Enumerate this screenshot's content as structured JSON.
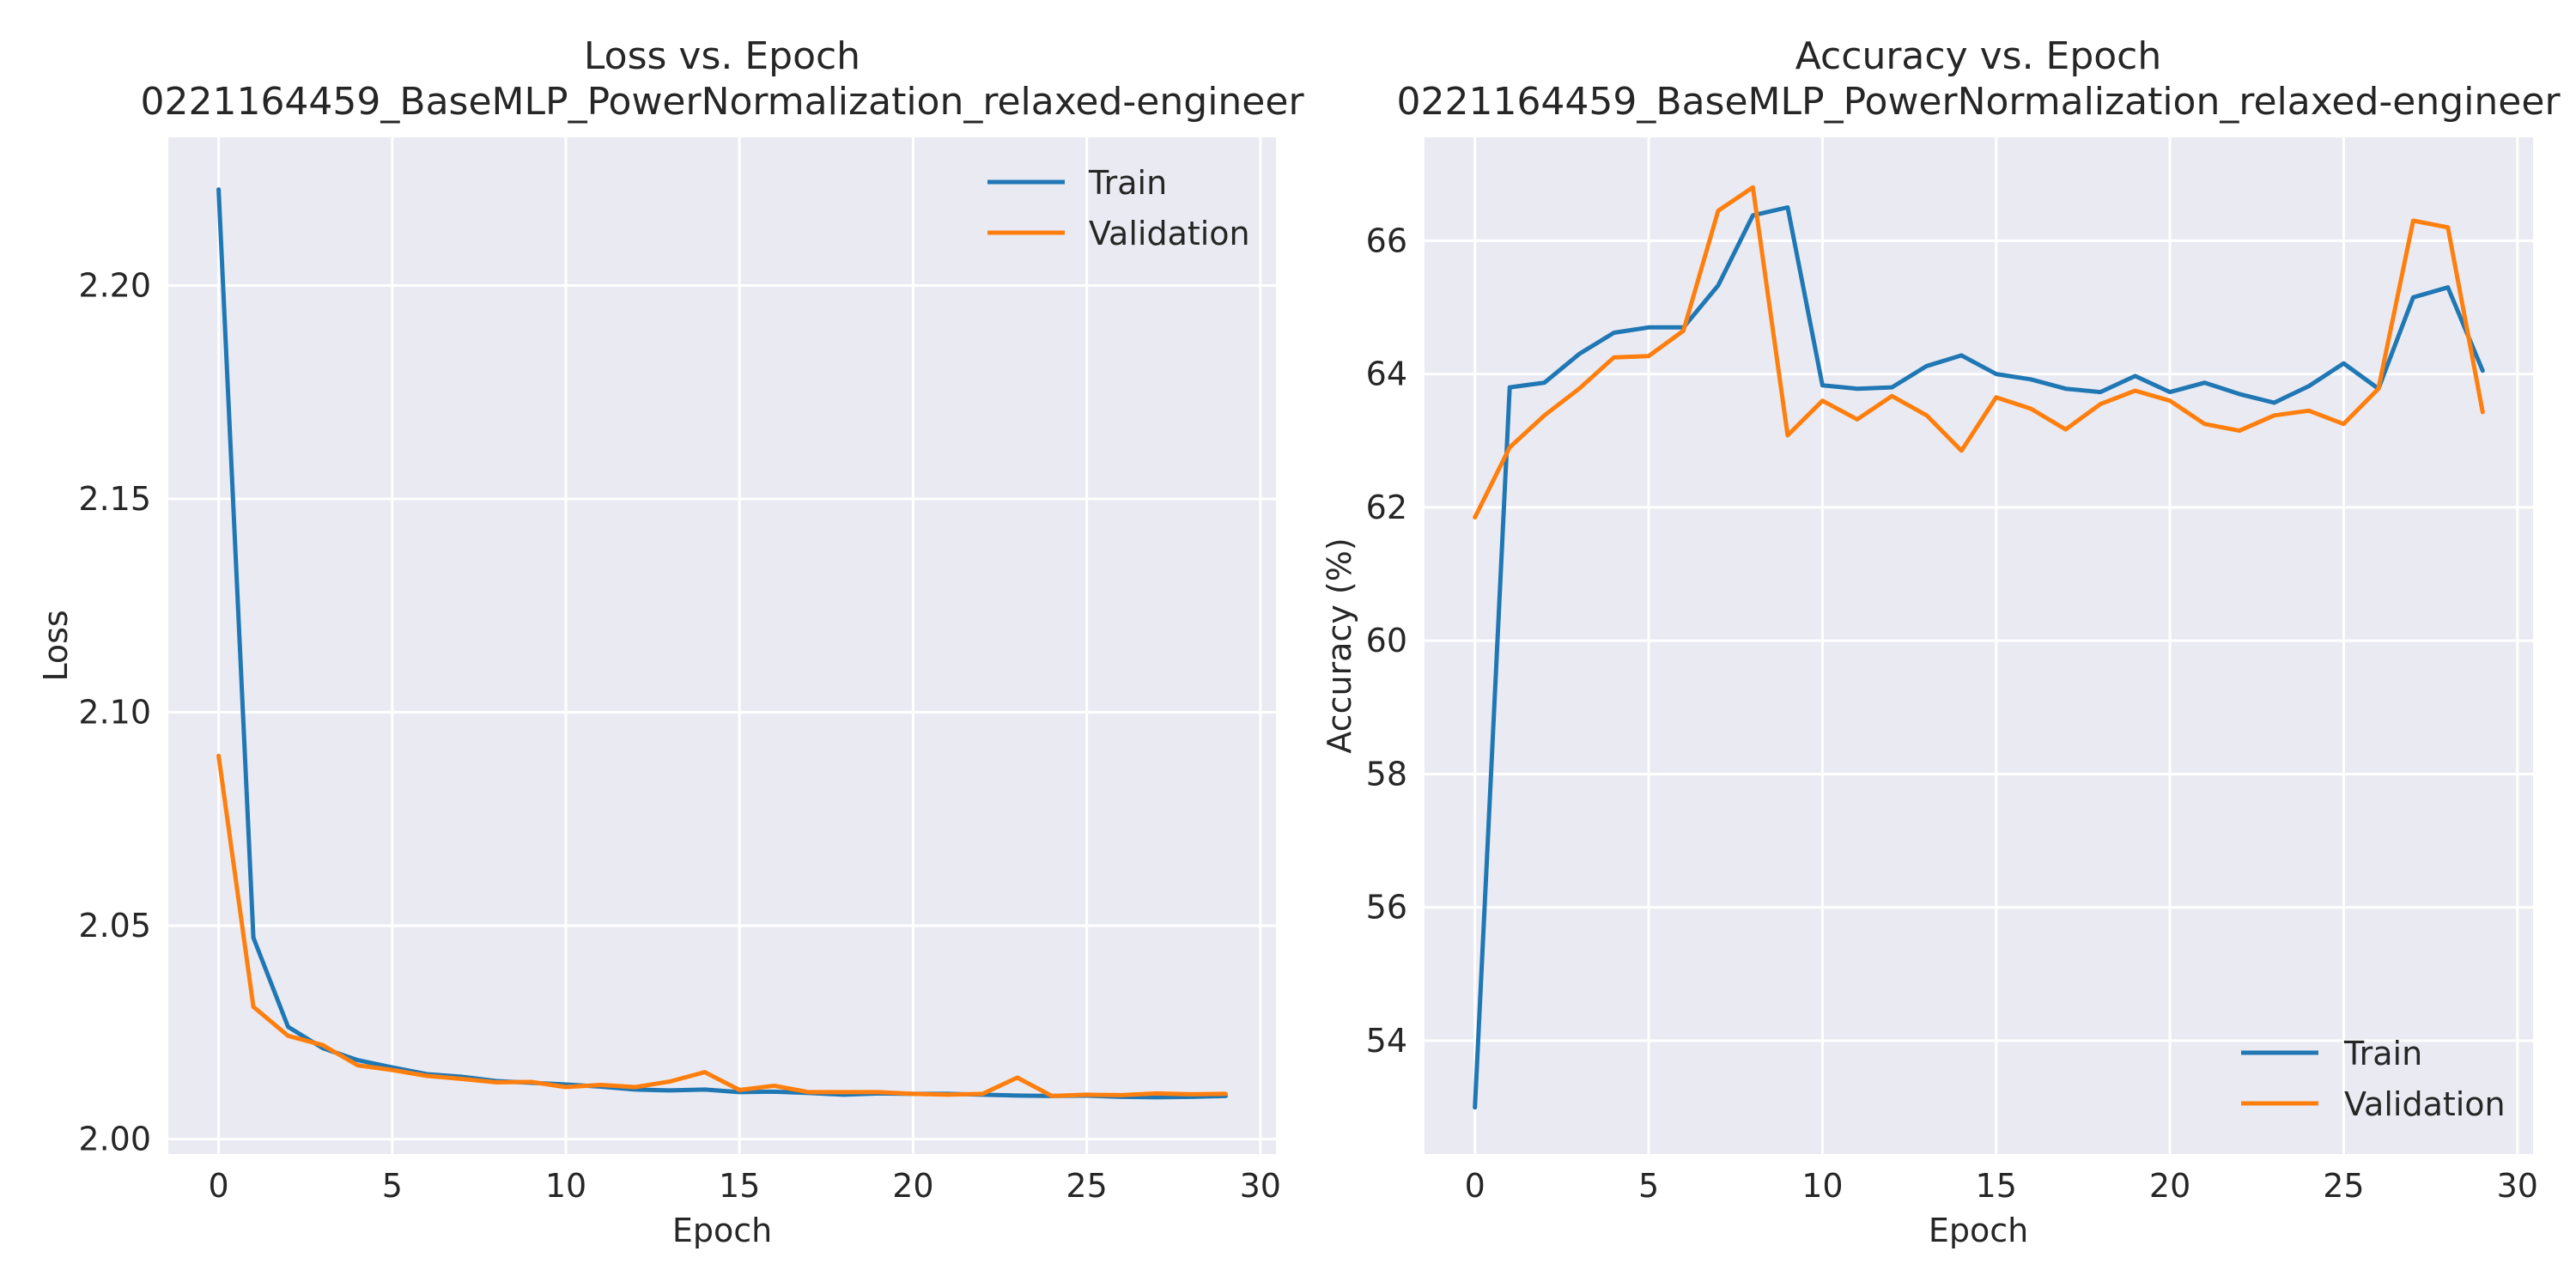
{
  "chart_data": [
    {
      "type": "line",
      "title_line1": "Loss vs. Epoch",
      "title_line2": "0221164459_BaseMLP_PowerNormalization_relaxed-engineer",
      "xlabel": "Epoch",
      "ylabel": "Loss",
      "xlim": [
        -1.45,
        30.45
      ],
      "ylim": [
        1.9965,
        2.2347
      ],
      "xticks": [
        0,
        5,
        10,
        15,
        20,
        25,
        30
      ],
      "yticks": [
        2.0,
        2.05,
        2.1,
        2.15,
        2.2
      ],
      "ytick_labels": [
        "2.00",
        "2.05",
        "2.10",
        "2.15",
        "2.20"
      ],
      "grid": true,
      "legend_position": "upper right",
      "x": [
        0,
        1,
        2,
        3,
        4,
        5,
        6,
        7,
        8,
        9,
        10,
        11,
        12,
        13,
        14,
        15,
        16,
        17,
        18,
        19,
        20,
        21,
        22,
        23,
        24,
        25,
        26,
        27,
        28,
        29
      ],
      "series": [
        {
          "name": "Train",
          "color": "#1f77b4",
          "values": [
            2.2225,
            2.0472,
            2.0263,
            2.0213,
            2.0185,
            2.0168,
            2.0152,
            2.0146,
            2.0136,
            2.0132,
            2.0128,
            2.0123,
            2.0116,
            2.0114,
            2.0116,
            2.011,
            2.0111,
            2.0108,
            2.0104,
            2.0107,
            2.0106,
            2.0106,
            2.0104,
            2.0102,
            2.0101,
            2.0102,
            2.0099,
            2.0098,
            2.0099,
            2.0101
          ]
        },
        {
          "name": "Validation",
          "color": "#ff7f0e",
          "values": [
            2.0898,
            2.031,
            2.0242,
            2.022,
            2.0173,
            2.0162,
            2.0148,
            2.0141,
            2.0133,
            2.0134,
            2.0122,
            2.0127,
            2.0122,
            2.0135,
            2.0157,
            2.0115,
            2.0125,
            2.011,
            2.011,
            2.011,
            2.0106,
            2.0104,
            2.0106,
            2.0144,
            2.0101,
            2.0104,
            2.0103,
            2.0107,
            2.0105,
            2.0106
          ]
        }
      ]
    },
    {
      "type": "line",
      "title_line1": "Accuracy vs. Epoch",
      "title_line2": "0221164459_BaseMLP_PowerNormalization_relaxed-engineer",
      "xlabel": "Epoch",
      "ylabel": "Accuracy (%)",
      "xlim": [
        -1.45,
        30.45
      ],
      "ylim": [
        52.3,
        67.55
      ],
      "xticks": [
        0,
        5,
        10,
        15,
        20,
        25,
        30
      ],
      "yticks": [
        54,
        56,
        58,
        60,
        62,
        64,
        66
      ],
      "ytick_labels": [
        "54",
        "56",
        "58",
        "60",
        "62",
        "64",
        "66"
      ],
      "grid": true,
      "legend_position": "lower right",
      "x": [
        0,
        1,
        2,
        3,
        4,
        5,
        6,
        7,
        8,
        9,
        10,
        11,
        12,
        13,
        14,
        15,
        16,
        17,
        18,
        19,
        20,
        21,
        22,
        23,
        24,
        25,
        26,
        27,
        28,
        29
      ],
      "series": [
        {
          "name": "Train",
          "color": "#1f77b4",
          "values": [
            53.0,
            63.8,
            63.87,
            64.3,
            64.62,
            64.7,
            64.7,
            65.33,
            66.38,
            66.5,
            63.83,
            63.78,
            63.8,
            64.12,
            64.28,
            64.0,
            63.92,
            63.78,
            63.73,
            63.97,
            63.73,
            63.87,
            63.7,
            63.57,
            63.82,
            64.16,
            63.78,
            65.15,
            65.3,
            64.05
          ]
        },
        {
          "name": "Validation",
          "color": "#ff7f0e",
          "values": [
            61.85,
            62.9,
            63.38,
            63.78,
            64.25,
            64.27,
            64.65,
            66.45,
            66.8,
            63.08,
            63.6,
            63.32,
            63.67,
            63.38,
            62.85,
            63.65,
            63.48,
            63.17,
            63.55,
            63.75,
            63.6,
            63.25,
            63.15,
            63.38,
            63.45,
            63.25,
            63.78,
            66.3,
            66.2,
            63.43
          ]
        }
      ]
    }
  ]
}
